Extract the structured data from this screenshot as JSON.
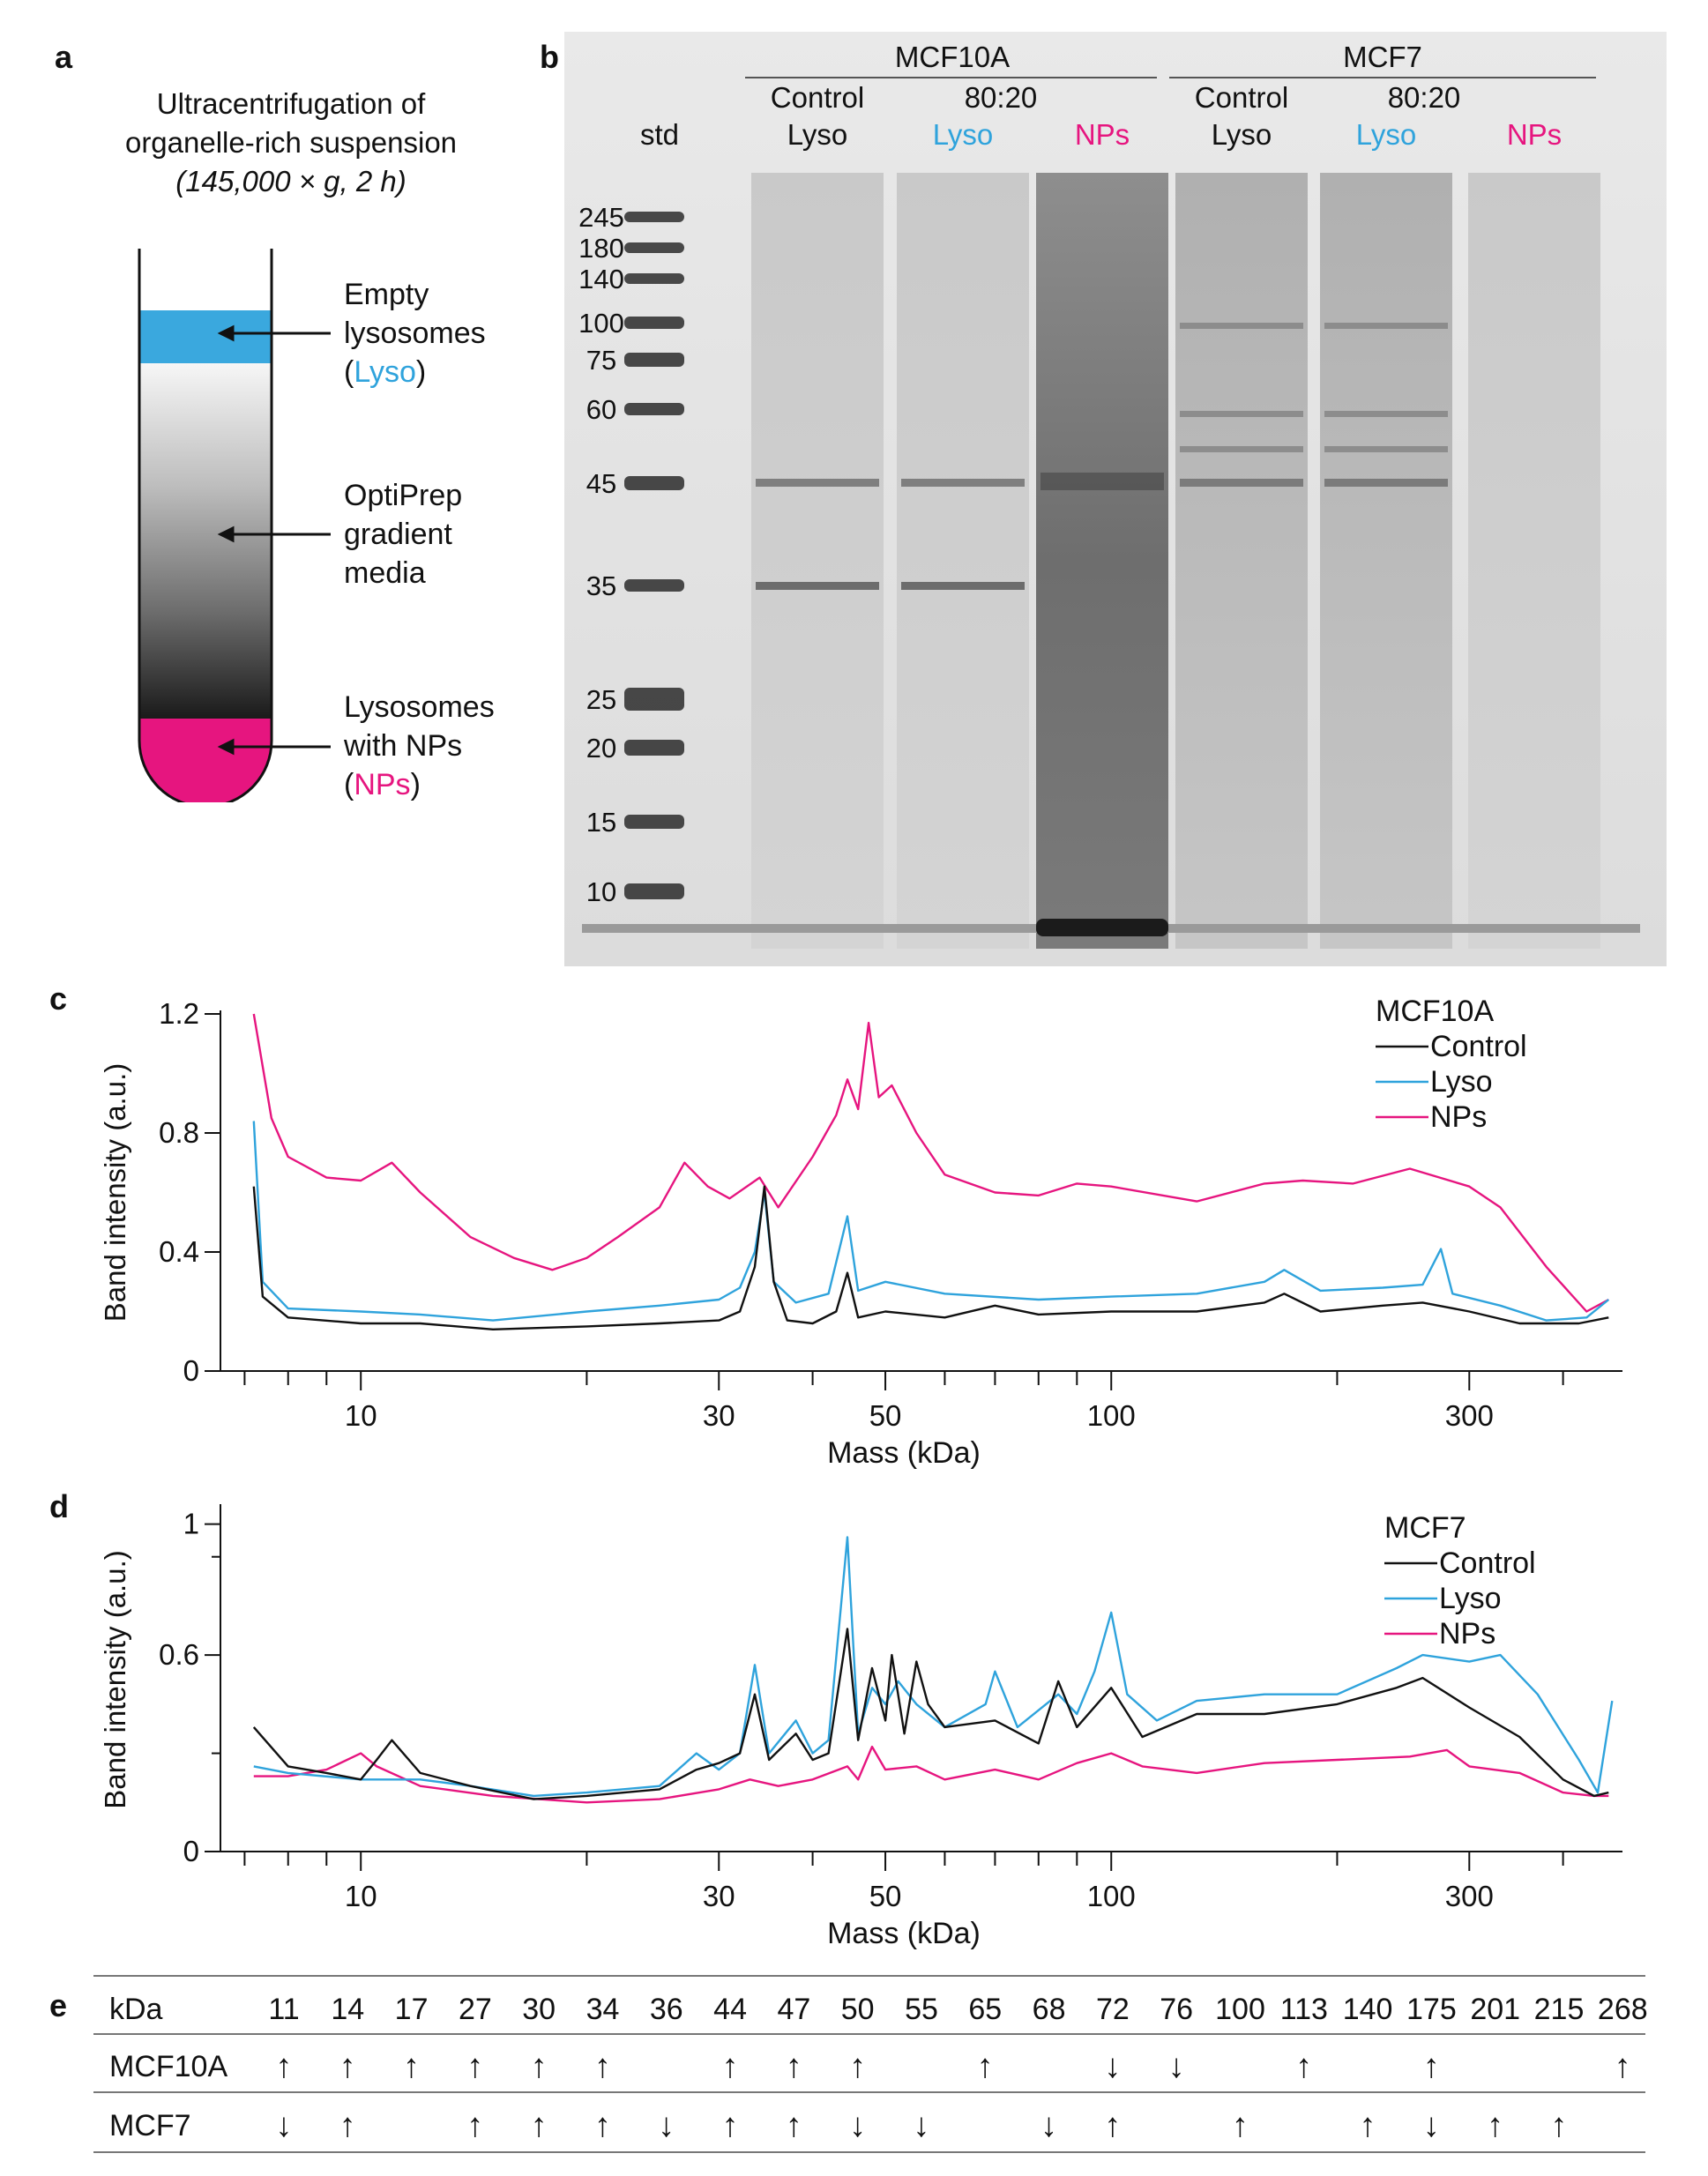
{
  "panel_a": {
    "label": "a",
    "title_line1": "Ultracentrifugation of",
    "title_line2": "organelle-rich suspension",
    "condition": "(145,000 × g, 2 h)",
    "annotations": [
      {
        "line1": "Empty",
        "line2": "lysosomes",
        "line3_pre": "(",
        "line3_hl": "Lyso",
        "line3_post": ")",
        "color": "#2fa3dc"
      },
      {
        "line1": "OptiPrep",
        "line2": "gradient",
        "line3": "media"
      },
      {
        "line1": "Lysosomes",
        "line2": "with NPs",
        "line3_pre": "(",
        "line3_hl": "NPs",
        "line3_post": ")",
        "color": "#e6157f"
      }
    ],
    "colors": {
      "lyso_band": "#3aa8de",
      "nps_band": "#e6157f"
    }
  },
  "panel_b": {
    "label": "b",
    "group_headers": [
      "MCF10A",
      "MCF7"
    ],
    "sub_headers": [
      "Control",
      "80:20",
      "Control",
      "80:20"
    ],
    "lane_labels": [
      {
        "text": "std",
        "color": "#111111"
      },
      {
        "text": "Lyso",
        "color": "#111111"
      },
      {
        "text": "Lyso",
        "color": "#2fa3dc"
      },
      {
        "text": "NPs",
        "color": "#e6157f"
      },
      {
        "text": "Lyso",
        "color": "#111111"
      },
      {
        "text": "Lyso",
        "color": "#2fa3dc"
      },
      {
        "text": "NPs",
        "color": "#e6157f"
      }
    ],
    "marker_kda": [
      "245",
      "180",
      "140",
      "100",
      "75",
      "60",
      "45",
      "35",
      "25",
      "20",
      "15",
      "10"
    ]
  },
  "chart_data": [
    {
      "type": "line",
      "panel": "c",
      "xlabel": "Mass (kDa)",
      "ylabel": "Band intensity (a.u.)",
      "x_scale": "log",
      "xlim": [
        6.5,
        480
      ],
      "ylim": [
        0,
        1.2
      ],
      "yticks": [
        "0",
        "0.4",
        "0.8",
        "1.2"
      ],
      "xtick_labels": [
        "10",
        "30",
        "50",
        "100",
        "300"
      ],
      "legend_title": "MCF10A",
      "legend_position": "top-right",
      "series": [
        {
          "name": "Control",
          "color": "#111111",
          "points": [
            [
              7.2,
              0.62
            ],
            [
              7.4,
              0.25
            ],
            [
              8,
              0.18
            ],
            [
              10,
              0.16
            ],
            [
              12,
              0.16
            ],
            [
              15,
              0.14
            ],
            [
              20,
              0.15
            ],
            [
              25,
              0.16
            ],
            [
              30,
              0.17
            ],
            [
              32,
              0.2
            ],
            [
              33.5,
              0.35
            ],
            [
              34.5,
              0.62
            ],
            [
              35.5,
              0.3
            ],
            [
              37,
              0.17
            ],
            [
              40,
              0.16
            ],
            [
              43,
              0.2
            ],
            [
              44.5,
              0.33
            ],
            [
              46,
              0.18
            ],
            [
              50,
              0.2
            ],
            [
              60,
              0.18
            ],
            [
              70,
              0.22
            ],
            [
              80,
              0.19
            ],
            [
              100,
              0.2
            ],
            [
              130,
              0.2
            ],
            [
              160,
              0.23
            ],
            [
              170,
              0.26
            ],
            [
              190,
              0.2
            ],
            [
              230,
              0.22
            ],
            [
              260,
              0.23
            ],
            [
              300,
              0.2
            ],
            [
              350,
              0.16
            ],
            [
              420,
              0.16
            ],
            [
              460,
              0.18
            ]
          ]
        },
        {
          "name": "Lyso",
          "color": "#2fa3dc",
          "points": [
            [
              7.2,
              0.84
            ],
            [
              7.4,
              0.3
            ],
            [
              8,
              0.21
            ],
            [
              10,
              0.2
            ],
            [
              12,
              0.19
            ],
            [
              15,
              0.17
            ],
            [
              20,
              0.2
            ],
            [
              25,
              0.22
            ],
            [
              30,
              0.24
            ],
            [
              32,
              0.28
            ],
            [
              33.5,
              0.4
            ],
            [
              34.5,
              0.6
            ],
            [
              35.5,
              0.3
            ],
            [
              38,
              0.23
            ],
            [
              42,
              0.26
            ],
            [
              44.5,
              0.52
            ],
            [
              46,
              0.27
            ],
            [
              50,
              0.3
            ],
            [
              60,
              0.26
            ],
            [
              80,
              0.24
            ],
            [
              100,
              0.25
            ],
            [
              130,
              0.26
            ],
            [
              160,
              0.3
            ],
            [
              170,
              0.34
            ],
            [
              190,
              0.27
            ],
            [
              230,
              0.28
            ],
            [
              260,
              0.29
            ],
            [
              275,
              0.41
            ],
            [
              285,
              0.26
            ],
            [
              330,
              0.22
            ],
            [
              380,
              0.17
            ],
            [
              430,
              0.18
            ],
            [
              460,
              0.24
            ]
          ]
        },
        {
          "name": "NPs",
          "color": "#e6157f",
          "points": [
            [
              7.2,
              1.2
            ],
            [
              7.6,
              0.85
            ],
            [
              8,
              0.72
            ],
            [
              9,
              0.65
            ],
            [
              10,
              0.64
            ],
            [
              11,
              0.7
            ],
            [
              12,
              0.6
            ],
            [
              14,
              0.45
            ],
            [
              16,
              0.38
            ],
            [
              18,
              0.34
            ],
            [
              20,
              0.38
            ],
            [
              22,
              0.45
            ],
            [
              25,
              0.55
            ],
            [
              27,
              0.7
            ],
            [
              29,
              0.62
            ],
            [
              31,
              0.58
            ],
            [
              34,
              0.65
            ],
            [
              36,
              0.55
            ],
            [
              40,
              0.72
            ],
            [
              43,
              0.86
            ],
            [
              44.5,
              0.98
            ],
            [
              46,
              0.88
            ],
            [
              47.5,
              1.17
            ],
            [
              49,
              0.92
            ],
            [
              51,
              0.96
            ],
            [
              55,
              0.8
            ],
            [
              60,
              0.66
            ],
            [
              70,
              0.6
            ],
            [
              80,
              0.59
            ],
            [
              90,
              0.63
            ],
            [
              100,
              0.62
            ],
            [
              130,
              0.57
            ],
            [
              160,
              0.63
            ],
            [
              180,
              0.64
            ],
            [
              210,
              0.63
            ],
            [
              250,
              0.68
            ],
            [
              300,
              0.62
            ],
            [
              330,
              0.55
            ],
            [
              380,
              0.35
            ],
            [
              430,
              0.2
            ],
            [
              460,
              0.24
            ]
          ]
        }
      ]
    },
    {
      "type": "line",
      "panel": "d",
      "xlabel": "Mass (kDa)",
      "ylabel": "Band intensity (a.u.)",
      "x_scale": "log",
      "xlim": [
        6.5,
        480
      ],
      "ylim": [
        0,
        1.05
      ],
      "yticks": [
        "0",
        "0.6",
        "1"
      ],
      "xtick_labels": [
        "10",
        "30",
        "50",
        "100",
        "300"
      ],
      "legend_title": "MCF7",
      "legend_position": "top-right",
      "series": [
        {
          "name": "Control",
          "color": "#111111",
          "points": [
            [
              7.2,
              0.38
            ],
            [
              8,
              0.26
            ],
            [
              9,
              0.24
            ],
            [
              10,
              0.22
            ],
            [
              10.5,
              0.28
            ],
            [
              11,
              0.34
            ],
            [
              12,
              0.24
            ],
            [
              14,
              0.2
            ],
            [
              17,
              0.16
            ],
            [
              20,
              0.17
            ],
            [
              25,
              0.19
            ],
            [
              28,
              0.25
            ],
            [
              30,
              0.27
            ],
            [
              32,
              0.3
            ],
            [
              33.5,
              0.48
            ],
            [
              35,
              0.28
            ],
            [
              38,
              0.36
            ],
            [
              40,
              0.28
            ],
            [
              42,
              0.3
            ],
            [
              44.5,
              0.68
            ],
            [
              46,
              0.34
            ],
            [
              48,
              0.56
            ],
            [
              50,
              0.4
            ],
            [
              51,
              0.6
            ],
            [
              53,
              0.36
            ],
            [
              55,
              0.58
            ],
            [
              57,
              0.45
            ],
            [
              60,
              0.38
            ],
            [
              70,
              0.4
            ],
            [
              80,
              0.33
            ],
            [
              85,
              0.52
            ],
            [
              90,
              0.38
            ],
            [
              100,
              0.5
            ],
            [
              110,
              0.35
            ],
            [
              130,
              0.42
            ],
            [
              160,
              0.42
            ],
            [
              200,
              0.45
            ],
            [
              240,
              0.5
            ],
            [
              260,
              0.53
            ],
            [
              300,
              0.44
            ],
            [
              350,
              0.35
            ],
            [
              400,
              0.22
            ],
            [
              440,
              0.17
            ],
            [
              460,
              0.18
            ]
          ]
        },
        {
          "name": "Lyso",
          "color": "#2fa3dc",
          "points": [
            [
              7.2,
              0.26
            ],
            [
              8,
              0.24
            ],
            [
              10,
              0.22
            ],
            [
              12,
              0.22
            ],
            [
              14,
              0.2
            ],
            [
              17,
              0.17
            ],
            [
              20,
              0.18
            ],
            [
              25,
              0.2
            ],
            [
              28,
              0.3
            ],
            [
              30,
              0.25
            ],
            [
              32,
              0.3
            ],
            [
              33.5,
              0.57
            ],
            [
              35,
              0.3
            ],
            [
              38,
              0.4
            ],
            [
              40,
              0.3
            ],
            [
              42,
              0.34
            ],
            [
              44.5,
              0.96
            ],
            [
              46,
              0.36
            ],
            [
              48,
              0.5
            ],
            [
              50,
              0.45
            ],
            [
              52,
              0.52
            ],
            [
              55,
              0.45
            ],
            [
              60,
              0.38
            ],
            [
              68,
              0.45
            ],
            [
              70,
              0.55
            ],
            [
              75,
              0.38
            ],
            [
              85,
              0.48
            ],
            [
              90,
              0.42
            ],
            [
              95,
              0.55
            ],
            [
              100,
              0.73
            ],
            [
              105,
              0.48
            ],
            [
              115,
              0.4
            ],
            [
              130,
              0.46
            ],
            [
              160,
              0.48
            ],
            [
              200,
              0.48
            ],
            [
              240,
              0.56
            ],
            [
              260,
              0.6
            ],
            [
              300,
              0.58
            ],
            [
              330,
              0.6
            ],
            [
              370,
              0.48
            ],
            [
              420,
              0.28
            ],
            [
              445,
              0.18
            ],
            [
              465,
              0.46
            ]
          ]
        },
        {
          "name": "NPs",
          "color": "#e6157f",
          "points": [
            [
              7.2,
              0.23
            ],
            [
              8,
              0.23
            ],
            [
              9,
              0.25
            ],
            [
              10,
              0.3
            ],
            [
              10.5,
              0.26
            ],
            [
              12,
              0.2
            ],
            [
              15,
              0.17
            ],
            [
              20,
              0.15
            ],
            [
              25,
              0.16
            ],
            [
              30,
              0.19
            ],
            [
              33,
              0.22
            ],
            [
              36,
              0.2
            ],
            [
              40,
              0.22
            ],
            [
              44.5,
              0.26
            ],
            [
              46,
              0.22
            ],
            [
              48,
              0.32
            ],
            [
              50,
              0.25
            ],
            [
              55,
              0.26
            ],
            [
              60,
              0.22
            ],
            [
              70,
              0.25
            ],
            [
              80,
              0.22
            ],
            [
              90,
              0.27
            ],
            [
              100,
              0.3
            ],
            [
              110,
              0.26
            ],
            [
              130,
              0.24
            ],
            [
              160,
              0.27
            ],
            [
              200,
              0.28
            ],
            [
              250,
              0.29
            ],
            [
              280,
              0.31
            ],
            [
              300,
              0.26
            ],
            [
              350,
              0.24
            ],
            [
              400,
              0.18
            ],
            [
              440,
              0.17
            ],
            [
              460,
              0.17
            ]
          ]
        }
      ]
    }
  ],
  "panel_c": {
    "label": "c"
  },
  "panel_d": {
    "label": "d"
  },
  "panel_e": {
    "label": "e",
    "header_label": "kDa",
    "columns": [
      "11",
      "14",
      "17",
      "27",
      "30",
      "34",
      "36",
      "44",
      "47",
      "50",
      "55",
      "65",
      "68",
      "72",
      "76",
      "100",
      "113",
      "140",
      "175",
      "201",
      "215",
      "268"
    ],
    "rows": [
      {
        "label": "MCF10A",
        "cells": [
          "↑",
          "↑",
          "↑",
          "↑",
          "↑",
          "↑",
          "",
          "↑",
          "↑",
          "↑",
          "",
          "↑",
          "",
          "↓",
          "↓",
          "",
          "↑",
          "",
          "↑",
          "",
          "",
          "↑"
        ]
      },
      {
        "label": "MCF7",
        "cells": [
          "↓",
          "↑",
          "",
          "↑",
          "↑",
          "↑",
          "↓",
          "↑",
          "↑",
          "↓",
          "↓",
          "",
          "↓",
          "↑",
          "",
          "↑",
          "",
          "↑",
          "↓",
          "↑",
          "↑",
          ""
        ]
      }
    ]
  }
}
